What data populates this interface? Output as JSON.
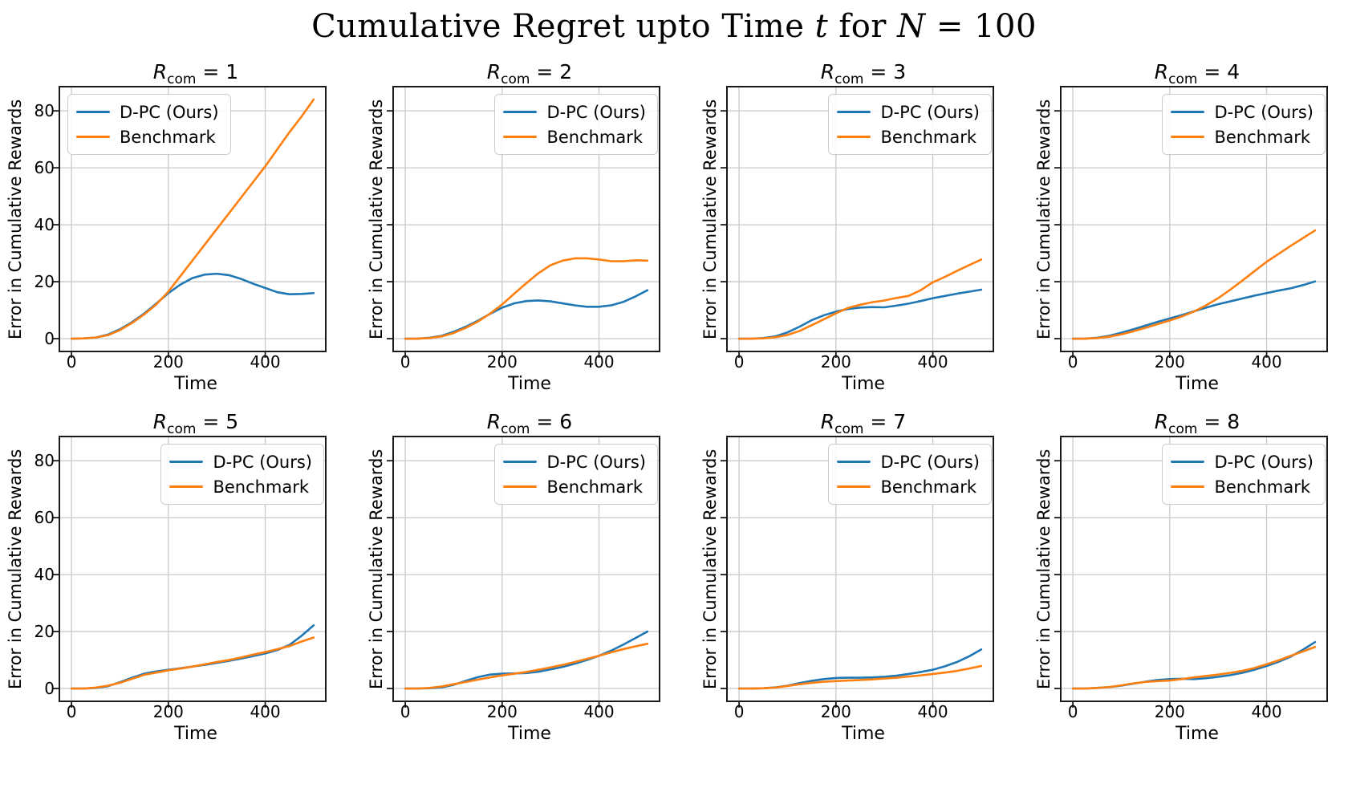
{
  "figure": {
    "title": {
      "full_text": "Cumulative Regret upto Time t for N = 100",
      "parts": [
        {
          "text": "Cumulative Regret upto Time ",
          "italic": false
        },
        {
          "text": "t",
          "italic": true
        },
        {
          "text": " for ",
          "italic": false
        },
        {
          "text": "N",
          "italic": true
        },
        {
          "text": " = 100",
          "italic": false
        }
      ]
    },
    "colors": {
      "dpc_line": "#1f77b4",
      "benchmark_line": "#ff7f0e",
      "grid": "#c9c9c9",
      "spine": "#1a1a1a",
      "background": "#ffffff"
    }
  },
  "chart_data": [
    {
      "id": "1",
      "type": "line",
      "title_var": "R",
      "title_sub": "com",
      "title_rest": " = 1",
      "xlabel": "Time",
      "ylabel": "Error in Cumulative Rewards",
      "xlim": [
        -25,
        525
      ],
      "ylim": [
        -4.5,
        88.5
      ],
      "xticks": [
        0,
        200,
        400
      ],
      "yticks": [
        0,
        20,
        40,
        60,
        80
      ],
      "show_ytick_labels": true,
      "grid": true,
      "legend_pos": "upper-left",
      "x": [
        0,
        25,
        50,
        75,
        100,
        125,
        150,
        175,
        200,
        225,
        250,
        275,
        300,
        325,
        350,
        375,
        400,
        425,
        450,
        475,
        500
      ],
      "series": [
        {
          "name": "D-PC (Ours)",
          "color": "#1f77b4",
          "values": [
            0,
            0.1,
            0.4,
            1.4,
            3.3,
            5.8,
            8.8,
            12.3,
            16,
            19,
            21.3,
            22.5,
            22.8,
            22.3,
            21,
            19.3,
            17.8,
            16.3,
            15.6,
            15.7,
            16
          ]
        },
        {
          "name": "Benchmark",
          "color": "#ff7f0e",
          "values": [
            0,
            0.1,
            0.4,
            1.2,
            3,
            5.5,
            8.5,
            12,
            16.5,
            22,
            27.5,
            33,
            38.5,
            44,
            49.5,
            55,
            60.5,
            66.5,
            72.5,
            78,
            84
          ]
        }
      ]
    },
    {
      "id": "2",
      "type": "line",
      "title_var": "R",
      "title_sub": "com",
      "title_rest": " = 2",
      "xlabel": "Time",
      "ylabel": "Error in Cumulative Rewards",
      "xlim": [
        -25,
        525
      ],
      "ylim": [
        -4.5,
        88.5
      ],
      "xticks": [
        0,
        200,
        400
      ],
      "yticks": [
        0,
        20,
        40,
        60,
        80
      ],
      "show_ytick_labels": false,
      "grid": true,
      "legend_pos": "upper-right",
      "x": [
        0,
        25,
        50,
        75,
        100,
        125,
        150,
        175,
        200,
        225,
        250,
        275,
        300,
        325,
        350,
        375,
        400,
        425,
        450,
        475,
        500
      ],
      "series": [
        {
          "name": "D-PC (Ours)",
          "color": "#1f77b4",
          "values": [
            0,
            0,
            0.3,
            1,
            2.4,
            4.2,
            6.3,
            8.7,
            10.9,
            12.4,
            13.2,
            13.4,
            13.1,
            12.4,
            11.7,
            11.2,
            11.2,
            11.7,
            12.9,
            14.8,
            17
          ]
        },
        {
          "name": "Benchmark",
          "color": "#ff7f0e",
          "values": [
            0,
            0,
            0.2,
            0.8,
            2,
            3.8,
            6,
            8.8,
            12,
            15.8,
            19.5,
            23,
            25.8,
            27.4,
            28.2,
            28.2,
            27.8,
            27.2,
            27.2,
            27.5,
            27.4
          ]
        }
      ]
    },
    {
      "id": "3",
      "type": "line",
      "title_var": "R",
      "title_sub": "com",
      "title_rest": " = 3",
      "xlabel": "Time",
      "ylabel": "Error in Cumulative Rewards",
      "xlim": [
        -25,
        525
      ],
      "ylim": [
        -4.5,
        88.5
      ],
      "xticks": [
        0,
        200,
        400
      ],
      "yticks": [
        0,
        20,
        40,
        60,
        80
      ],
      "show_ytick_labels": false,
      "grid": true,
      "legend_pos": "upper-right",
      "x": [
        0,
        25,
        50,
        75,
        100,
        125,
        150,
        175,
        200,
        225,
        250,
        275,
        300,
        325,
        350,
        375,
        400,
        425,
        450,
        475,
        500
      ],
      "series": [
        {
          "name": "D-PC (Ours)",
          "color": "#1f77b4",
          "values": [
            0,
            0,
            0.2,
            0.8,
            2.2,
            4.2,
            6.5,
            8.2,
            9.5,
            10.4,
            10.9,
            11.1,
            11,
            11.6,
            12.3,
            13.2,
            14.2,
            15,
            15.8,
            16.5,
            17.2
          ]
        },
        {
          "name": "Benchmark",
          "color": "#ff7f0e",
          "values": [
            0,
            0,
            0.1,
            0.5,
            1.3,
            2.7,
            4.7,
            6.8,
            8.9,
            10.8,
            11.9,
            12.8,
            13.4,
            14.3,
            15,
            17,
            19.8,
            21.7,
            23.8,
            25.8,
            27.8
          ]
        }
      ]
    },
    {
      "id": "4",
      "type": "line",
      "title_var": "R",
      "title_sub": "com",
      "title_rest": " = 4",
      "xlabel": "Time",
      "ylabel": "Error in Cumulative Rewards",
      "xlim": [
        -25,
        525
      ],
      "ylim": [
        -4.5,
        88.5
      ],
      "xticks": [
        0,
        200,
        400
      ],
      "yticks": [
        0,
        20,
        40,
        60,
        80
      ],
      "show_ytick_labels": false,
      "grid": true,
      "legend_pos": "upper-right",
      "x": [
        0,
        25,
        50,
        75,
        100,
        125,
        150,
        175,
        200,
        225,
        250,
        275,
        300,
        325,
        350,
        375,
        400,
        425,
        450,
        475,
        500
      ],
      "series": [
        {
          "name": "D-PC (Ours)",
          "color": "#1f77b4",
          "values": [
            0,
            0,
            0.3,
            1,
            2.1,
            3.3,
            4.6,
            5.9,
            7.1,
            8.3,
            9.6,
            10.9,
            12.1,
            13.1,
            14.1,
            15.1,
            16,
            16.9,
            17.7,
            18.8,
            20.1
          ]
        },
        {
          "name": "Benchmark",
          "color": "#ff7f0e",
          "values": [
            0,
            0,
            0.2,
            0.7,
            1.5,
            2.6,
            3.8,
            5.1,
            6.4,
            7.8,
            9.5,
            11.7,
            14.2,
            17.2,
            20.4,
            23.7,
            27,
            29.8,
            32.6,
            35.3,
            38
          ]
        }
      ]
    },
    {
      "id": "5",
      "type": "line",
      "title_var": "R",
      "title_sub": "com",
      "title_rest": " = 5",
      "xlabel": "Time",
      "ylabel": "Error in Cumulative Rewards",
      "xlim": [
        -25,
        525
      ],
      "ylim": [
        -4.5,
        88.5
      ],
      "xticks": [
        0,
        200,
        400
      ],
      "yticks": [
        0,
        20,
        40,
        60,
        80
      ],
      "show_ytick_labels": true,
      "grid": true,
      "legend_pos": "upper-right",
      "x": [
        0,
        25,
        50,
        75,
        100,
        125,
        150,
        175,
        200,
        225,
        250,
        275,
        300,
        325,
        350,
        375,
        400,
        425,
        450,
        475,
        500
      ],
      "series": [
        {
          "name": "D-PC (Ours)",
          "color": "#1f77b4",
          "values": [
            0,
            0,
            0.2,
            0.8,
            2.2,
            3.8,
            5.2,
            6,
            6.6,
            7.1,
            7.7,
            8.3,
            9,
            9.7,
            10.5,
            11.4,
            12.3,
            13.5,
            15.3,
            18.5,
            22.2
          ]
        },
        {
          "name": "Benchmark",
          "color": "#ff7f0e",
          "values": [
            0,
            0,
            0.3,
            1,
            2,
            3.4,
            4.8,
            5.6,
            6.4,
            7,
            7.7,
            8.5,
            9.3,
            10,
            10.9,
            11.9,
            12.8,
            13.8,
            14.9,
            16.5,
            17.9
          ]
        }
      ]
    },
    {
      "id": "6",
      "type": "line",
      "title_var": "R",
      "title_sub": "com",
      "title_rest": " = 6",
      "xlabel": "Time",
      "ylabel": "Error in Cumulative Rewards",
      "xlim": [
        -25,
        525
      ],
      "ylim": [
        -4.5,
        88.5
      ],
      "xticks": [
        0,
        200,
        400
      ],
      "yticks": [
        0,
        20,
        40,
        60,
        80
      ],
      "show_ytick_labels": false,
      "grid": true,
      "legend_pos": "upper-right",
      "x": [
        0,
        25,
        50,
        75,
        100,
        125,
        150,
        175,
        200,
        225,
        250,
        275,
        300,
        325,
        350,
        375,
        400,
        425,
        450,
        475,
        500
      ],
      "series": [
        {
          "name": "D-PC (Ours)",
          "color": "#1f77b4",
          "values": [
            0,
            0,
            0.1,
            0.4,
            1.3,
            2.7,
            4,
            4.9,
            5.2,
            5.3,
            5.4,
            5.9,
            6.7,
            7.6,
            8.7,
            10,
            11.5,
            13.3,
            15.4,
            17.7,
            20
          ]
        },
        {
          "name": "Benchmark",
          "color": "#ff7f0e",
          "values": [
            0,
            0,
            0.2,
            0.7,
            1.5,
            2.3,
            3.1,
            3.9,
            4.6,
            5.2,
            5.8,
            6.6,
            7.4,
            8.3,
            9.3,
            10.4,
            11.5,
            12.7,
            13.8,
            14.8,
            15.7
          ]
        }
      ]
    },
    {
      "id": "7",
      "type": "line",
      "title_var": "R",
      "title_sub": "com",
      "title_rest": " = 7",
      "xlabel": "Time",
      "ylabel": "Error in Cumulative Rewards",
      "xlim": [
        -25,
        525
      ],
      "ylim": [
        -4.5,
        88.5
      ],
      "xticks": [
        0,
        200,
        400
      ],
      "yticks": [
        0,
        20,
        40,
        60,
        80
      ],
      "show_ytick_labels": false,
      "grid": true,
      "legend_pos": "upper-right",
      "x": [
        0,
        25,
        50,
        75,
        100,
        125,
        150,
        175,
        200,
        225,
        250,
        275,
        300,
        325,
        350,
        375,
        400,
        425,
        450,
        475,
        500
      ],
      "series": [
        {
          "name": "D-PC (Ours)",
          "color": "#1f77b4",
          "values": [
            0,
            0,
            0.1,
            0.4,
            1,
            1.9,
            2.7,
            3.3,
            3.7,
            3.8,
            3.8,
            3.9,
            4.1,
            4.5,
            5.1,
            5.8,
            6.6,
            7.8,
            9.3,
            11.3,
            13.7
          ]
        },
        {
          "name": "Benchmark",
          "color": "#ff7f0e",
          "values": [
            0,
            0,
            0.1,
            0.3,
            0.9,
            1.5,
            2,
            2.4,
            2.6,
            2.8,
            3,
            3.2,
            3.5,
            3.8,
            4.2,
            4.6,
            5.1,
            5.6,
            6.2,
            7,
            7.9
          ]
        }
      ]
    },
    {
      "id": "8",
      "type": "line",
      "title_var": "R",
      "title_sub": "com",
      "title_rest": " = 8",
      "xlabel": "Time",
      "ylabel": "Error in Cumulative Rewards",
      "xlim": [
        -25,
        525
      ],
      "ylim": [
        -4.5,
        88.5
      ],
      "xticks": [
        0,
        200,
        400
      ],
      "yticks": [
        0,
        20,
        40,
        60,
        80
      ],
      "show_ytick_labels": false,
      "grid": true,
      "legend_pos": "upper-right",
      "x": [
        0,
        25,
        50,
        75,
        100,
        125,
        150,
        175,
        200,
        225,
        250,
        275,
        300,
        325,
        350,
        375,
        400,
        425,
        450,
        475,
        500
      ],
      "series": [
        {
          "name": "D-PC (Ours)",
          "color": "#1f77b4",
          "values": [
            0,
            0,
            0.2,
            0.5,
            1,
            1.7,
            2.4,
            3,
            3.3,
            3.4,
            3.3,
            3.6,
            4.1,
            4.7,
            5.5,
            6.6,
            7.9,
            9.4,
            11.2,
            13.6,
            16.3
          ]
        },
        {
          "name": "Benchmark",
          "color": "#ff7f0e",
          "values": [
            0,
            0,
            0.2,
            0.5,
            1.1,
            1.8,
            2.3,
            2.6,
            2.8,
            3.3,
            3.9,
            4.4,
            4.9,
            5.5,
            6.2,
            7.2,
            8.5,
            9.9,
            11.5,
            13,
            14.6
          ]
        }
      ]
    }
  ]
}
